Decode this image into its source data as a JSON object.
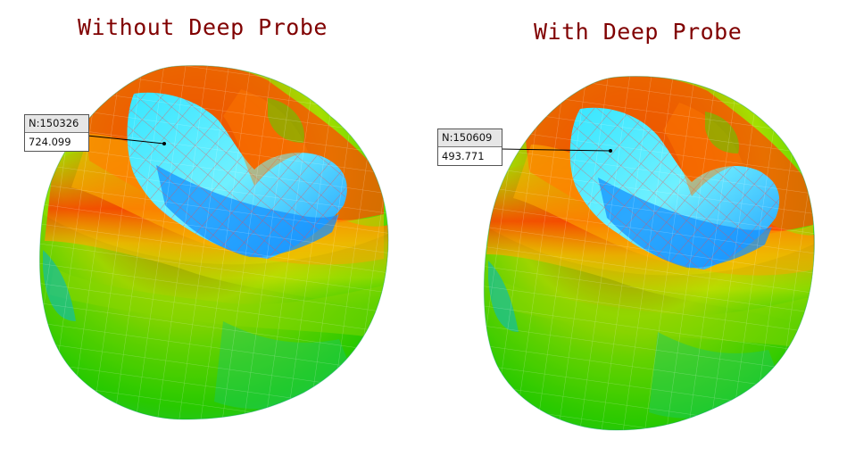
{
  "panels": [
    {
      "title": "Without Deep Probe",
      "probe": {
        "node_label": "N:150326",
        "value": "724.099"
      }
    },
    {
      "title": "With Deep Probe",
      "probe": {
        "node_label": "N:150609",
        "value": "493.771"
      }
    }
  ]
}
